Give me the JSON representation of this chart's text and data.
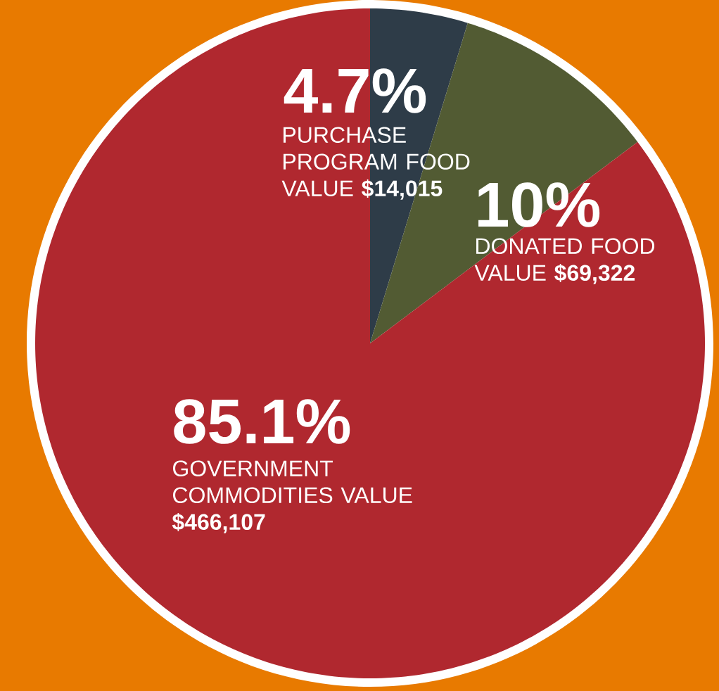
{
  "chart_data": {
    "type": "pie",
    "categories": [
      "PURCHASE PROGRAM FOOD VALUE **$14,015**",
      "DONATED FOOD VALUE **$69,322**",
      "GOVERNMENT COMMODITIES VALUE **$466,107**"
    ],
    "values": [
      4.7,
      10,
      85.1
    ],
    "value_labels": [
      "4.7%",
      "10%",
      "85.1%"
    ],
    "colors": [
      "#2e3c48",
      "#525b33",
      "#b0282f"
    ]
  }
}
